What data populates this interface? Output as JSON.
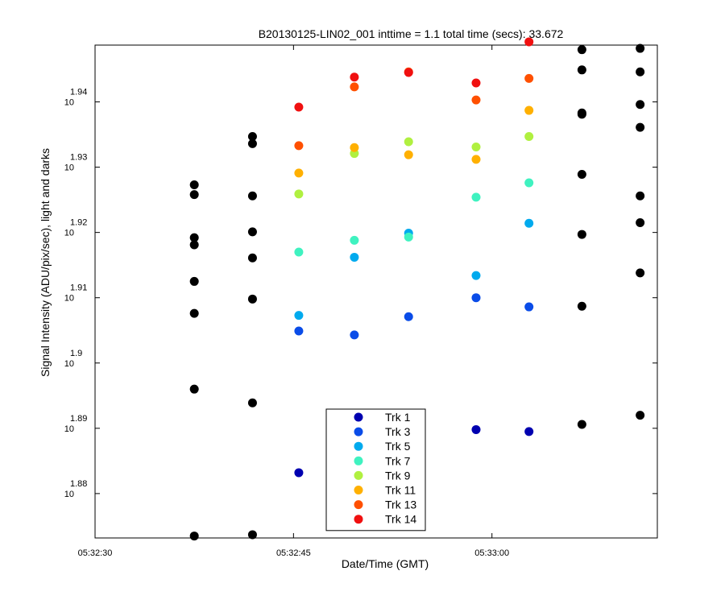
{
  "chart_data": {
    "type": "scatter",
    "title": "B20130125-LIN02_001 inttime = 1.1 total time (secs): 33.672",
    "xlabel": "Date/Time (GMT)",
    "ylabel": "Signal Intensity (ADU/pix/sec), light and darks",
    "x_axis": {
      "unit": "seconds after 05:32:30 GMT",
      "range": [
        0,
        42.5
      ],
      "ticks": [
        {
          "value": 0,
          "label": "05:32:30"
        },
        {
          "value": 15,
          "label": "05:32:45"
        },
        {
          "value": 30,
          "label": "05:33:00"
        }
      ]
    },
    "y_axis": {
      "scale": "log10",
      "unit": "log10 of signal intensity",
      "range": [
        1.8732,
        1.9487
      ],
      "ticks": [
        {
          "value": 1.88,
          "base": "10",
          "exp": "1.88"
        },
        {
          "value": 1.89,
          "base": "10",
          "exp": "1.89"
        },
        {
          "value": 1.9,
          "base": "10",
          "exp": "1.9"
        },
        {
          "value": 1.91,
          "base": "10",
          "exp": "1.91"
        },
        {
          "value": 1.92,
          "base": "10",
          "exp": "1.92"
        },
        {
          "value": 1.93,
          "base": "10",
          "exp": "1.93"
        },
        {
          "value": 1.94,
          "base": "10",
          "exp": "1.94"
        }
      ]
    },
    "grid": false,
    "legend_position": "bottom-center",
    "series": [
      {
        "name": "Trk 1",
        "color": "#0000b0",
        "points": [
          [
            15.4,
            1.8832
          ],
          [
            28.8,
            1.8898
          ],
          [
            32.8,
            1.8895
          ]
        ]
      },
      {
        "name": "Trk 3",
        "color": "#0a4ce8",
        "points": [
          [
            15.4,
            1.9049
          ],
          [
            19.6,
            1.9043
          ],
          [
            23.7,
            1.9071
          ],
          [
            28.8,
            1.91
          ],
          [
            32.8,
            1.9086
          ]
        ]
      },
      {
        "name": "Trk 5",
        "color": "#00aaee",
        "points": [
          [
            15.4,
            1.9073
          ],
          [
            19.6,
            1.9162
          ],
          [
            23.7,
            1.9199
          ],
          [
            28.8,
            1.9134
          ],
          [
            32.8,
            1.9214
          ]
        ]
      },
      {
        "name": "Trk 7",
        "color": "#3ff2c0",
        "points": [
          [
            15.4,
            1.917
          ],
          [
            19.6,
            1.9188
          ],
          [
            23.7,
            1.9193
          ],
          [
            28.8,
            1.9254
          ],
          [
            32.8,
            1.9276
          ]
        ]
      },
      {
        "name": "Trk 9",
        "color": "#b0f040",
        "points": [
          [
            15.4,
            1.9259
          ],
          [
            19.6,
            1.9321
          ],
          [
            23.7,
            1.9339
          ],
          [
            28.8,
            1.9331
          ],
          [
            32.8,
            1.9347
          ]
        ]
      },
      {
        "name": "Trk 11",
        "color": "#ffb000",
        "points": [
          [
            15.4,
            1.9291
          ],
          [
            19.6,
            1.933
          ],
          [
            23.7,
            1.9319
          ],
          [
            28.8,
            1.9312
          ],
          [
            32.8,
            1.9387
          ]
        ]
      },
      {
        "name": "Trk 13",
        "color": "#ff5000",
        "points": [
          [
            15.4,
            1.9333
          ],
          [
            19.6,
            1.9423
          ],
          [
            23.7,
            1.9446
          ],
          [
            28.8,
            1.9403
          ],
          [
            32.8,
            1.9436
          ]
        ]
      },
      {
        "name": "Trk 14",
        "color": "#f01010",
        "points": [
          [
            15.4,
            1.9392
          ],
          [
            19.6,
            1.9438
          ],
          [
            23.7,
            1.9445
          ],
          [
            28.8,
            1.9429
          ],
          [
            32.8,
            1.9492
          ]
        ]
      },
      {
        "name": "",
        "color": "#000000",
        "points": [
          [
            7.5,
            1.8735
          ],
          [
            7.5,
            1.896
          ],
          [
            7.5,
            1.9076
          ],
          [
            7.5,
            1.9125
          ],
          [
            7.5,
            1.9181
          ],
          [
            7.5,
            1.9192
          ],
          [
            7.5,
            1.9258
          ],
          [
            7.5,
            1.9273
          ],
          [
            11.9,
            1.8737
          ],
          [
            11.9,
            1.8939
          ],
          [
            11.9,
            1.9098
          ],
          [
            11.9,
            1.9161
          ],
          [
            11.9,
            1.9201
          ],
          [
            11.9,
            1.9256
          ],
          [
            11.9,
            1.9336
          ],
          [
            11.9,
            1.9347
          ],
          [
            36.8,
            1.8906
          ],
          [
            36.8,
            1.9087
          ],
          [
            36.8,
            1.9197
          ],
          [
            36.8,
            1.9289
          ],
          [
            36.8,
            1.9381
          ],
          [
            36.8,
            1.9383
          ],
          [
            36.8,
            1.9449
          ],
          [
            36.8,
            1.948
          ],
          [
            41.2,
            1.892
          ],
          [
            41.2,
            1.9138
          ],
          [
            41.2,
            1.9215
          ],
          [
            41.2,
            1.9256
          ],
          [
            41.2,
            1.9361
          ],
          [
            41.2,
            1.9396
          ],
          [
            41.2,
            1.9446
          ],
          [
            41.2,
            1.9482
          ]
        ]
      }
    ]
  }
}
